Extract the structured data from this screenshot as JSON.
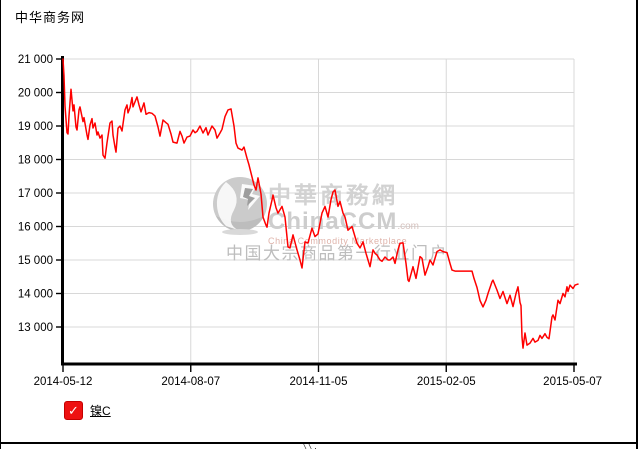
{
  "header": {
    "site_name": "中华商务网"
  },
  "watermark": {
    "cn_title": "中華商務網",
    "brand": "ChinaCCM",
    "brand_suffix": ".com",
    "en_subtitle": "China Commodity Marketplace",
    "cn_subtitle": "中国大宗商品第一行业门户"
  },
  "legend": {
    "label": "镍C",
    "checkbox_checked": true,
    "check_glyph": "✓",
    "checkbox_color": "#ee1111"
  },
  "footer": {
    "marks": "\\\\."
  },
  "colors": {
    "line": "#ff0000",
    "grid": "#d8d8d8",
    "axis": "#000000",
    "label": "#000000"
  },
  "chart_data": {
    "type": "line",
    "title": "",
    "xlabel": "",
    "ylabel": "",
    "legend_position": "bottom-left",
    "grid": true,
    "x_ticks": [
      "2014-05-12",
      "2014-08-07",
      "2014-11-05",
      "2015-02-05",
      "2015-05-07"
    ],
    "y_ticks": {
      "values": [
        21000,
        20000,
        19000,
        18000,
        17000,
        16000,
        15000,
        14000,
        13000
      ],
      "labels": [
        "21 000",
        "20 000",
        "19 000",
        "18 000",
        "17 000",
        "16 000",
        "15 000",
        "14 000",
        "13 000"
      ]
    },
    "ylim": [
      11900,
      21100
    ],
    "series": [
      {
        "name": "镍C",
        "color": "#ff0000",
        "points": [
          [
            0,
            21000
          ],
          [
            1,
            20500
          ],
          [
            2,
            19600
          ],
          [
            4,
            18800
          ],
          [
            5,
            18760
          ],
          [
            6,
            19300
          ],
          [
            8,
            20100
          ],
          [
            10,
            19450
          ],
          [
            11,
            19630
          ],
          [
            13,
            18970
          ],
          [
            14,
            18880
          ],
          [
            16,
            19480
          ],
          [
            17,
            19570
          ],
          [
            20,
            19130
          ],
          [
            21,
            19250
          ],
          [
            24,
            18730
          ],
          [
            25,
            18600
          ],
          [
            27,
            19030
          ],
          [
            29,
            19220
          ],
          [
            30,
            18940
          ],
          [
            32,
            19090
          ],
          [
            34,
            18730
          ],
          [
            35,
            18820
          ],
          [
            37,
            18640
          ],
          [
            39,
            18730
          ],
          [
            40,
            18130
          ],
          [
            42,
            18040
          ],
          [
            44,
            18500
          ],
          [
            47,
            19090
          ],
          [
            49,
            19150
          ],
          [
            50,
            18730
          ],
          [
            52,
            18370
          ],
          [
            53,
            18220
          ],
          [
            55,
            18930
          ],
          [
            57,
            19000
          ],
          [
            59,
            18850
          ],
          [
            62,
            19480
          ],
          [
            64,
            19630
          ],
          [
            65,
            19390
          ],
          [
            67,
            19550
          ],
          [
            69,
            19850
          ],
          [
            70,
            19570
          ],
          [
            74,
            19870
          ],
          [
            76,
            19630
          ],
          [
            78,
            19420
          ],
          [
            81,
            19690
          ],
          [
            83,
            19350
          ],
          [
            86,
            19400
          ],
          [
            89,
            19380
          ],
          [
            92,
            19300
          ],
          [
            95,
            18970
          ],
          [
            97,
            18700
          ],
          [
            100,
            19180
          ],
          [
            103,
            19100
          ],
          [
            105,
            19050
          ],
          [
            108,
            18760
          ],
          [
            110,
            18520
          ],
          [
            114,
            18490
          ],
          [
            117,
            18840
          ],
          [
            119,
            18700
          ],
          [
            121,
            18490
          ],
          [
            124,
            18670
          ],
          [
            127,
            18700
          ],
          [
            130,
            18880
          ],
          [
            132,
            18800
          ],
          [
            134,
            18840
          ],
          [
            137,
            19000
          ],
          [
            140,
            18790
          ],
          [
            143,
            18950
          ],
          [
            145,
            18730
          ],
          [
            149,
            19000
          ],
          [
            152,
            18880
          ],
          [
            154,
            18640
          ],
          [
            157,
            18790
          ],
          [
            159,
            18900
          ],
          [
            162,
            19280
          ],
          [
            165,
            19480
          ],
          [
            168,
            19510
          ],
          [
            171,
            19000
          ],
          [
            173,
            18490
          ],
          [
            175,
            18340
          ],
          [
            179,
            18280
          ],
          [
            181,
            18370
          ],
          [
            184,
            18040
          ],
          [
            186,
            17840
          ],
          [
            189,
            17480
          ],
          [
            191,
            17240
          ],
          [
            193,
            17090
          ],
          [
            195,
            17450
          ],
          [
            198,
            16970
          ],
          [
            200,
            16280
          ],
          [
            203,
            16040
          ],
          [
            204,
            15980
          ],
          [
            206,
            16400
          ],
          [
            209,
            16790
          ],
          [
            210,
            16940
          ],
          [
            213,
            16560
          ],
          [
            215,
            16400
          ],
          [
            219,
            16600
          ],
          [
            222,
            16280
          ],
          [
            225,
            15390
          ],
          [
            227,
            15360
          ],
          [
            230,
            15750
          ],
          [
            234,
            15300
          ],
          [
            237,
            15000
          ],
          [
            239,
            14760
          ],
          [
            242,
            15540
          ],
          [
            245,
            15510
          ],
          [
            249,
            15950
          ],
          [
            252,
            15700
          ],
          [
            255,
            15780
          ],
          [
            257,
            16100
          ],
          [
            259,
            16400
          ],
          [
            262,
            16600
          ],
          [
            265,
            16280
          ],
          [
            268,
            16800
          ],
          [
            270,
            17030
          ],
          [
            272,
            17090
          ],
          [
            275,
            16600
          ],
          [
            277,
            16750
          ],
          [
            280,
            16400
          ],
          [
            282,
            16280
          ],
          [
            285,
            15890
          ],
          [
            289,
            16000
          ],
          [
            292,
            15700
          ],
          [
            294,
            15500
          ],
          [
            297,
            15360
          ],
          [
            300,
            15540
          ],
          [
            303,
            15200
          ],
          [
            305,
            15000
          ],
          [
            307,
            14800
          ],
          [
            310,
            15300
          ],
          [
            312,
            15200
          ],
          [
            314,
            15150
          ],
          [
            317,
            15000
          ],
          [
            319,
            14960
          ],
          [
            322,
            15090
          ],
          [
            325,
            15000
          ],
          [
            327,
            15000
          ],
          [
            330,
            15090
          ],
          [
            332,
            14900
          ],
          [
            335,
            15300
          ],
          [
            337,
            15500
          ],
          [
            340,
            15510
          ],
          [
            343,
            14900
          ],
          [
            345,
            14400
          ],
          [
            346,
            14360
          ],
          [
            350,
            14800
          ],
          [
            353,
            14450
          ],
          [
            357,
            15100
          ],
          [
            359,
            15050
          ],
          [
            362,
            14550
          ],
          [
            365,
            14800
          ],
          [
            367,
            15000
          ],
          [
            370,
            14850
          ],
          [
            374,
            15250
          ],
          [
            377,
            15300
          ],
          [
            380,
            15250
          ],
          [
            384,
            15220
          ],
          [
            387,
            14900
          ],
          [
            389,
            14700
          ],
          [
            392,
            14670
          ],
          [
            409,
            14670
          ],
          [
            411,
            14450
          ],
          [
            414,
            14180
          ],
          [
            417,
            13790
          ],
          [
            420,
            13600
          ],
          [
            423,
            13800
          ],
          [
            425,
            14000
          ],
          [
            429,
            14350
          ],
          [
            430,
            14400
          ],
          [
            434,
            14100
          ],
          [
            437,
            13850
          ],
          [
            440,
            14060
          ],
          [
            444,
            13700
          ],
          [
            447,
            13950
          ],
          [
            450,
            13610
          ],
          [
            453,
            14000
          ],
          [
            455,
            14200
          ],
          [
            457,
            13730
          ],
          [
            458,
            13640
          ],
          [
            459,
            12700
          ],
          [
            460,
            12370
          ],
          [
            462,
            12820
          ],
          [
            464,
            12460
          ],
          [
            467,
            12520
          ],
          [
            470,
            12660
          ],
          [
            472,
            12550
          ],
          [
            475,
            12600
          ],
          [
            477,
            12750
          ],
          [
            479,
            12660
          ],
          [
            482,
            12800
          ],
          [
            484,
            12690
          ],
          [
            486,
            12650
          ],
          [
            489,
            13300
          ],
          [
            490,
            13360
          ],
          [
            492,
            13210
          ],
          [
            495,
            13800
          ],
          [
            497,
            13700
          ],
          [
            500,
            14000
          ],
          [
            502,
            13900
          ],
          [
            504,
            14200
          ],
          [
            505,
            14060
          ],
          [
            507,
            14250
          ],
          [
            510,
            14150
          ],
          [
            512,
            14250
          ],
          [
            515,
            14280
          ]
        ]
      }
    ]
  }
}
